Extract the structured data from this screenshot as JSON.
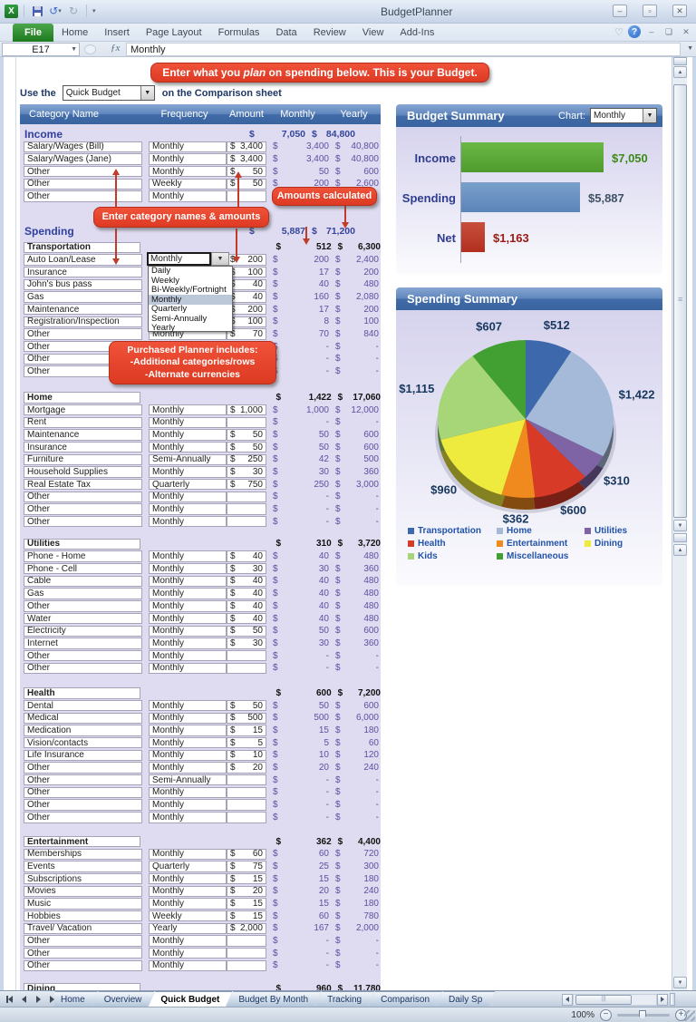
{
  "window": {
    "title": "BudgetPlanner"
  },
  "ribbon": {
    "tabs": [
      "File",
      "Home",
      "Insert",
      "Page Layout",
      "Formulas",
      "Data",
      "Review",
      "View",
      "Add-Ins"
    ]
  },
  "formula_bar": {
    "name_box": "E17",
    "fx": "ƒx",
    "content": "Monthly"
  },
  "callouts": {
    "banner_pre": "Enter what you ",
    "banner_italic": "plan",
    "banner_post": " on spending below.  This is your Budget.",
    "names_amounts": "Enter category names & amounts",
    "amounts_calculated": "Amounts calculated",
    "purchased_lines": [
      "Purchased Planner includes:",
      "-Additional categories/rows",
      "-Alternate currencies"
    ]
  },
  "controls": {
    "use_the": "Use the",
    "quick_budget": "Quick Budget",
    "comparison": "on the Comparison sheet"
  },
  "dropdown": {
    "options": [
      "Daily",
      "Weekly",
      "Bi-Weekly/Fortnight",
      "Monthly",
      "Quarterly",
      "Semi-Annually",
      "Yearly"
    ],
    "selected": "Monthly",
    "active_cell_value": "Monthly"
  },
  "table": {
    "headers": [
      "Category Name",
      "Frequency",
      "Amount",
      "Monthly",
      "Yearly"
    ],
    "sections": [
      {
        "id": "income",
        "kind": "grand",
        "name": "Income",
        "monthly": "7,050",
        "yearly": "84,800",
        "gap": 3,
        "rows": [
          {
            "name": "Salary/Wages (Bill)",
            "freq": "Monthly",
            "amount": "3,400",
            "monthly": "3,400",
            "yearly": "40,800"
          },
          {
            "name": "Salary/Wages (Jane)",
            "freq": "Monthly",
            "amount": "3,400",
            "monthly": "3,400",
            "yearly": "40,800"
          },
          {
            "name": "Other",
            "freq": "Monthly",
            "amount": "50",
            "monthly": "50",
            "yearly": "600"
          },
          {
            "name": "Other",
            "freq": "Weekly",
            "amount": "50",
            "monthly": "200",
            "yearly": "2,600"
          },
          {
            "name": "Other",
            "freq": "Monthly",
            "amount": "",
            "monthly": "",
            "yearly": ""
          }
        ]
      },
      {
        "id": "spending",
        "kind": "grand",
        "name": "Spending",
        "monthly": "5,887",
        "yearly": "71,200",
        "gap": 24.5,
        "rows": []
      },
      {
        "id": "transportation",
        "kind": "sub",
        "name": "Transportation",
        "monthly": "512",
        "yearly": "6,300",
        "gap": 3,
        "rows": [
          {
            "name": "Auto Loan/Lease",
            "freq": "",
            "amount": "200",
            "monthly": "200",
            "yearly": "2,400"
          },
          {
            "name": "Insurance",
            "freq": "",
            "amount": "100",
            "monthly": "17",
            "yearly": "200"
          },
          {
            "name": "John's bus pass",
            "freq": "",
            "amount": "40",
            "monthly": "40",
            "yearly": "480"
          },
          {
            "name": "Gas",
            "freq": "",
            "amount": "40",
            "monthly": "160",
            "yearly": "2,080"
          },
          {
            "name": "Maintenance",
            "freq": "",
            "amount": "200",
            "monthly": "17",
            "yearly": "200"
          },
          {
            "name": "Registration/Inspection",
            "freq": "",
            "amount": "100",
            "monthly": "8",
            "yearly": "100"
          },
          {
            "name": "Other",
            "freq": "Monthly",
            "amount": "70",
            "monthly": "70",
            "yearly": "840"
          },
          {
            "name": "Other",
            "freq": "Monthly",
            "amount": "",
            "monthly": "-",
            "yearly": "-"
          },
          {
            "name": "Other",
            "freq": "Monthly",
            "amount": "",
            "monthly": "-",
            "yearly": "-"
          },
          {
            "name": "Other",
            "freq": "Monthly",
            "amount": "",
            "monthly": "-",
            "yearly": "-"
          }
        ]
      },
      {
        "id": "home",
        "kind": "sub",
        "name": "Home",
        "monthly": "1,422",
        "yearly": "17,060",
        "gap": 15,
        "rows": [
          {
            "name": "Mortgage",
            "freq": "Monthly",
            "amount": "1,000",
            "monthly": "1,000",
            "yearly": "12,000"
          },
          {
            "name": "Rent",
            "freq": "Monthly",
            "amount": "",
            "monthly": "-",
            "yearly": "-"
          },
          {
            "name": "Maintenance",
            "freq": "Monthly",
            "amount": "50",
            "monthly": "50",
            "yearly": "600"
          },
          {
            "name": "Insurance",
            "freq": "Monthly",
            "amount": "50",
            "monthly": "50",
            "yearly": "600"
          },
          {
            "name": "Furniture",
            "freq": "Semi-Annually",
            "amount": "250",
            "monthly": "42",
            "yearly": "500"
          },
          {
            "name": "Household Supplies",
            "freq": "Monthly",
            "amount": "30",
            "monthly": "30",
            "yearly": "360"
          },
          {
            "name": "Real Estate Tax",
            "freq": "Quarterly",
            "amount": "750",
            "monthly": "250",
            "yearly": "3,000"
          },
          {
            "name": "Other",
            "freq": "Monthly",
            "amount": "",
            "monthly": "-",
            "yearly": "-"
          },
          {
            "name": "Other",
            "freq": "Monthly",
            "amount": "",
            "monthly": "-",
            "yearly": "-"
          },
          {
            "name": "Other",
            "freq": "Monthly",
            "amount": "",
            "monthly": "-",
            "yearly": "-"
          }
        ]
      },
      {
        "id": "utilities",
        "kind": "sub",
        "name": "Utilities",
        "monthly": "310",
        "yearly": "3,720",
        "gap": 11,
        "rows": [
          {
            "name": "Phone - Home",
            "freq": "Monthly",
            "amount": "40",
            "monthly": "40",
            "yearly": "480"
          },
          {
            "name": "Phone - Cell",
            "freq": "Monthly",
            "amount": "30",
            "monthly": "30",
            "yearly": "360"
          },
          {
            "name": "Cable",
            "freq": "Monthly",
            "amount": "40",
            "monthly": "40",
            "yearly": "480"
          },
          {
            "name": "Gas",
            "freq": "Monthly",
            "amount": "40",
            "monthly": "40",
            "yearly": "480"
          },
          {
            "name": "Other",
            "freq": "Monthly",
            "amount": "40",
            "monthly": "40",
            "yearly": "480"
          },
          {
            "name": "Water",
            "freq": "Monthly",
            "amount": "40",
            "monthly": "40",
            "yearly": "480"
          },
          {
            "name": "Electricity",
            "freq": "Monthly",
            "amount": "50",
            "monthly": "50",
            "yearly": "600"
          },
          {
            "name": "Internet",
            "freq": "Monthly",
            "amount": "30",
            "monthly": "30",
            "yearly": "360"
          },
          {
            "name": "Other",
            "freq": "Monthly",
            "amount": "",
            "monthly": "-",
            "yearly": "-"
          },
          {
            "name": "Other",
            "freq": "Monthly",
            "amount": "",
            "monthly": "-",
            "yearly": "-"
          }
        ]
      },
      {
        "id": "health",
        "kind": "sub",
        "name": "Health",
        "monthly": "600",
        "yearly": "7,200",
        "gap": 14,
        "rows": [
          {
            "name": "Dental",
            "freq": "Monthly",
            "amount": "50",
            "monthly": "50",
            "yearly": "600"
          },
          {
            "name": "Medical",
            "freq": "Monthly",
            "amount": "500",
            "monthly": "500",
            "yearly": "6,000"
          },
          {
            "name": "Medication",
            "freq": "Monthly",
            "amount": "15",
            "monthly": "15",
            "yearly": "180"
          },
          {
            "name": "Vision/contacts",
            "freq": "Monthly",
            "amount": "5",
            "monthly": "5",
            "yearly": "60"
          },
          {
            "name": "Life Insurance",
            "freq": "Monthly",
            "amount": "10",
            "monthly": "10",
            "yearly": "120"
          },
          {
            "name": "Other",
            "freq": "Monthly",
            "amount": "20",
            "monthly": "20",
            "yearly": "240"
          },
          {
            "name": "Other",
            "freq": "Semi-Annually",
            "amount": "",
            "monthly": "-",
            "yearly": "-"
          },
          {
            "name": "Other",
            "freq": "Monthly",
            "amount": "",
            "monthly": "-",
            "yearly": "-"
          },
          {
            "name": "Other",
            "freq": "Monthly",
            "amount": "",
            "monthly": "-",
            "yearly": "-"
          },
          {
            "name": "Other",
            "freq": "Monthly",
            "amount": "",
            "monthly": "-",
            "yearly": "-"
          }
        ]
      },
      {
        "id": "entertainment",
        "kind": "sub",
        "name": "Entertainment",
        "monthly": "362",
        "yearly": "4,400",
        "gap": 13,
        "rows": [
          {
            "name": "Memberships",
            "freq": "Monthly",
            "amount": "60",
            "monthly": "60",
            "yearly": "720"
          },
          {
            "name": "Events",
            "freq": "Quarterly",
            "amount": "75",
            "monthly": "25",
            "yearly": "300"
          },
          {
            "name": "Subscriptions",
            "freq": "Monthly",
            "amount": "15",
            "monthly": "15",
            "yearly": "180"
          },
          {
            "name": "Movies",
            "freq": "Monthly",
            "amount": "20",
            "monthly": "20",
            "yearly": "240"
          },
          {
            "name": "Music",
            "freq": "Monthly",
            "amount": "15",
            "monthly": "15",
            "yearly": "180"
          },
          {
            "name": "Hobbies",
            "freq": "Weekly",
            "amount": "15",
            "monthly": "60",
            "yearly": "780"
          },
          {
            "name": "Travel/ Vacation",
            "freq": "Yearly",
            "amount": "2,000",
            "monthly": "167",
            "yearly": "2,000"
          },
          {
            "name": "Other",
            "freq": "Monthly",
            "amount": "",
            "monthly": "-",
            "yearly": "-"
          },
          {
            "name": "Other",
            "freq": "Monthly",
            "amount": "",
            "monthly": "-",
            "yearly": "-"
          },
          {
            "name": "Other",
            "freq": "Monthly",
            "amount": "",
            "monthly": "-",
            "yearly": "-"
          }
        ]
      },
      {
        "id": "dining",
        "kind": "sub",
        "name": "Dining",
        "monthly": "960",
        "yearly": "11,780",
        "gap": 12,
        "rows": []
      }
    ]
  },
  "budget_summary": {
    "title": "Budget Summary",
    "chart_label": "Chart:",
    "chart_value": "Monthly"
  },
  "spending_summary": {
    "title": "Spending Summary"
  },
  "chart_data": [
    {
      "type": "bar",
      "title": "Budget Summary",
      "orientation": "horizontal",
      "categories": [
        "Income",
        "Spending",
        "Net"
      ],
      "values": [
        7050,
        5887,
        1163
      ],
      "value_labels": [
        "$7,050",
        "$5,887",
        "$1,163"
      ],
      "bar_colors": [
        "#4E9A2D",
        "#5B84B8",
        "#B22E1F"
      ],
      "bar_colors_light": [
        "#6CB846",
        "#7AA0CC",
        "#C8503C"
      ],
      "label_colors": [
        "#3E8A1A",
        "#3F5266",
        "#9B1B12"
      ],
      "xlim": [
        0,
        7050
      ],
      "grid": false
    },
    {
      "type": "pie",
      "title": "Spending Summary",
      "categories": [
        "Transportation",
        "Home",
        "Utilities",
        "Health",
        "Entertainment",
        "Dining",
        "Kids",
        "Miscellaneous"
      ],
      "values": [
        512,
        1422,
        310,
        600,
        362,
        960,
        1115,
        607
      ],
      "labels": [
        "$512",
        "$1,422",
        "$310",
        "$600",
        "$362",
        "$960",
        "$1,115",
        "$607"
      ],
      "colors": [
        "#3E68AC",
        "#A5BAD8",
        "#7E64A4",
        "#D83A28",
        "#F0891E",
        "#EEEA3E",
        "#A6D677",
        "#42A032"
      ],
      "legend_position": "bottom"
    }
  ],
  "sheet_tabs": {
    "tabs": [
      {
        "label": "Home",
        "active": false
      },
      {
        "label": "Overview",
        "active": false
      },
      {
        "label": "Quick Budget",
        "active": true
      },
      {
        "label": "Budget By Month",
        "active": false
      },
      {
        "label": "Tracking",
        "active": false
      },
      {
        "label": "Comparison",
        "active": false
      },
      {
        "label": "Daily Sp",
        "active": false
      }
    ]
  },
  "status": {
    "zoom": "100%"
  }
}
